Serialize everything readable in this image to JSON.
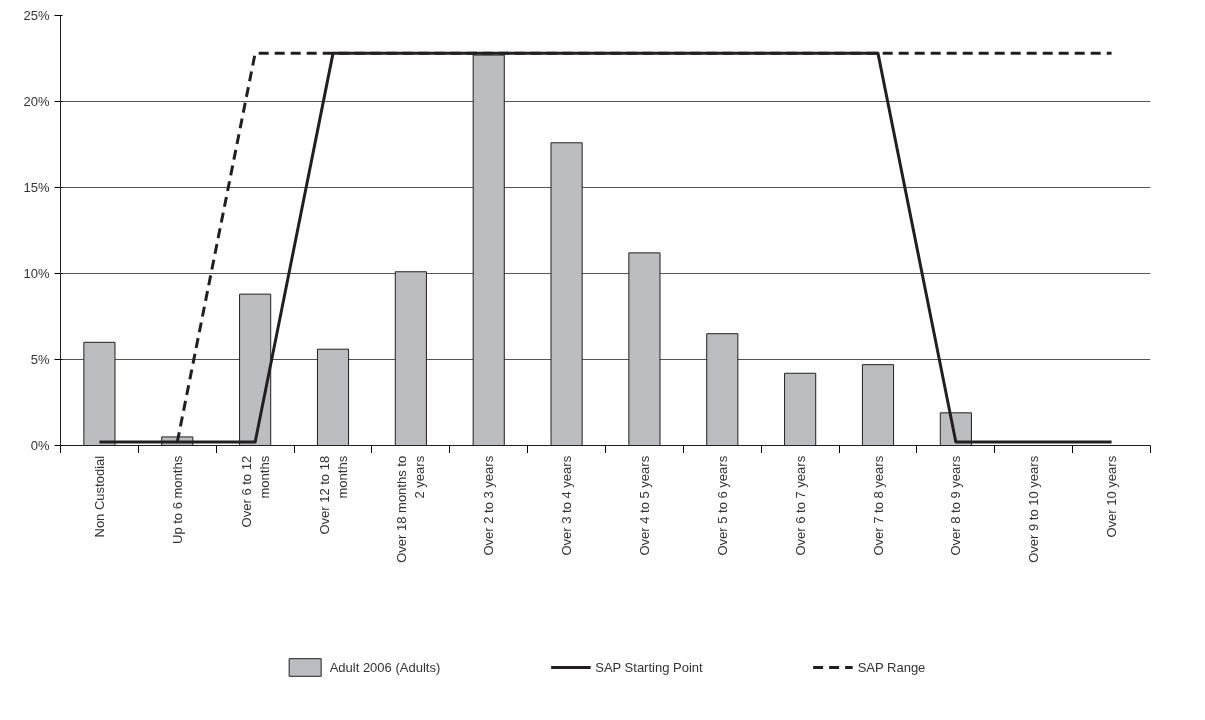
{
  "chart_data": {
    "type": "bar",
    "categories": [
      "Non Custodial",
      "Up to 6 months",
      "Over 6 to 12 months",
      "Over 12 to 18 months",
      "Over 18 months to 2 years",
      "Over 2 to 3 years",
      "Over 3 to 4 years",
      "Over 4 to 5 years",
      "Over 5 to 6 years",
      "Over 6 to 7 years",
      "Over 7 to 8 years",
      "Over 8 to 9 years",
      "Over 9 to 10 years",
      "Over 10 years"
    ],
    "series": [
      {
        "name": "Adult 2006 (Adults)",
        "color": "#bcbdc1",
        "values": [
          6.0,
          0.5,
          8.8,
          5.6,
          10.1,
          22.7,
          17.6,
          11.2,
          6.5,
          4.2,
          4.7,
          1.9,
          0,
          0
        ]
      },
      {
        "name": "SAP Starting Point",
        "type": "line",
        "color": "#231f20",
        "line_style": "solid",
        "values": [
          0.2,
          0.2,
          0.2,
          22.8,
          22.8,
          22.8,
          22.8,
          22.8,
          22.8,
          22.8,
          22.8,
          0.2,
          0.2,
          0.2
        ]
      },
      {
        "name": "SAP Range",
        "type": "line",
        "color": "#231f20",
        "line_style": "dashed",
        "values": [
          null,
          0.2,
          22.8,
          22.8,
          22.8,
          22.8,
          22.8,
          22.8,
          22.8,
          22.8,
          22.8,
          22.8,
          22.8,
          22.8
        ]
      }
    ],
    "ylim": [
      0,
      25
    ],
    "yticks": [
      {
        "value": 0,
        "label": "0%"
      },
      {
        "value": 5,
        "label": "5%"
      },
      {
        "value": 10,
        "label": "10%"
      },
      {
        "value": 15,
        "label": "15%"
      },
      {
        "value": 20,
        "label": "20%"
      },
      {
        "value": 25,
        "label": "25%"
      }
    ],
    "grid": "y",
    "legend": "bottom"
  }
}
